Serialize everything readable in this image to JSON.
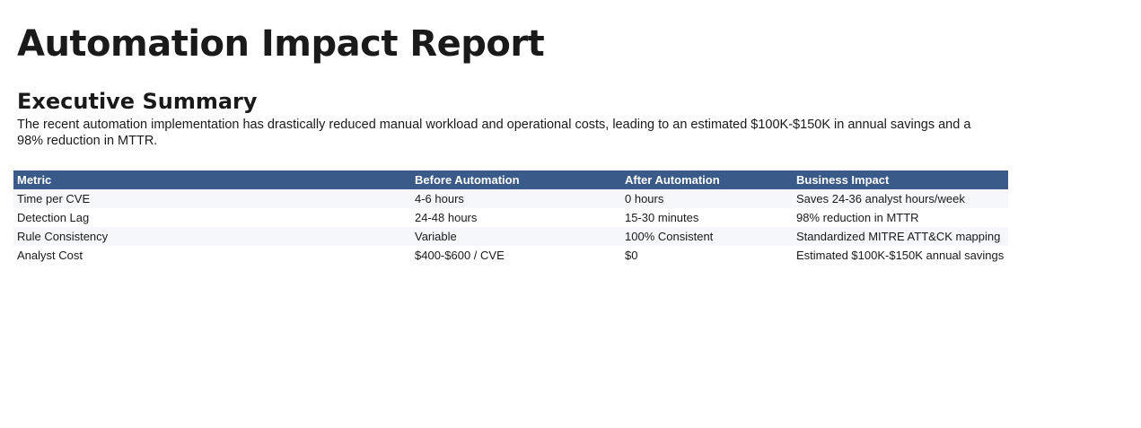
{
  "header": {
    "title": "Automation Impact Report"
  },
  "summary": {
    "heading": "Executive Summary",
    "text": "The recent automation implementation has drastically reduced manual workload and operational costs, leading to an estimated $100K-$150K in annual savings and a 98% reduction in MTTR."
  },
  "table": {
    "columns": [
      "Metric",
      "Before Automation",
      "After Automation",
      "Business Impact"
    ],
    "rows": [
      [
        "Time per CVE",
        "4-6 hours",
        "0 hours",
        "Saves 24-36 analyst hours/week"
      ],
      [
        "Detection Lag",
        "24-48 hours",
        "15-30 minutes",
        "98% reduction in MTTR"
      ],
      [
        "Rule Consistency",
        "Variable",
        "100% Consistent",
        "Standardized MITRE ATT&CK mapping"
      ],
      [
        "Analyst Cost",
        "$400-$600 / CVE",
        "$0",
        "Estimated $100K-$150K annual savings"
      ]
    ]
  }
}
